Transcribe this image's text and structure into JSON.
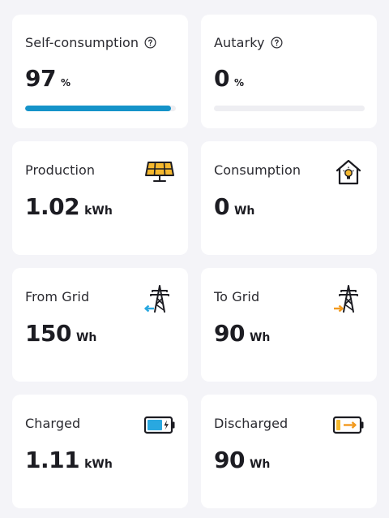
{
  "cards": [
    {
      "title": "Self-consumption",
      "value": "97",
      "unit": "%",
      "progress": 0.97
    },
    {
      "title": "Autarky",
      "value": "0",
      "unit": "%",
      "progress": 0
    },
    {
      "title": "Production",
      "value": "1.02",
      "unit": "kWh",
      "icon": "solar-panel-icon"
    },
    {
      "title": "Consumption",
      "value": "0",
      "unit": "Wh",
      "icon": "house-bulb-icon"
    },
    {
      "title": "From Grid",
      "value": "150",
      "unit": "Wh",
      "icon": "grid-import-icon"
    },
    {
      "title": "To Grid",
      "value": "90",
      "unit": "Wh",
      "icon": "grid-export-icon"
    },
    {
      "title": "Charged",
      "value": "1.11",
      "unit": "kWh",
      "icon": "battery-charging-icon"
    },
    {
      "title": "Discharged",
      "value": "90",
      "unit": "Wh",
      "icon": "battery-discharging-icon"
    }
  ],
  "colors": {
    "accent": "#1593c9",
    "icon_yellow": "#f5b82e",
    "icon_orange": "#f29a1f",
    "icon_blue": "#29a8e0",
    "progress_track": "#eeeef2"
  }
}
